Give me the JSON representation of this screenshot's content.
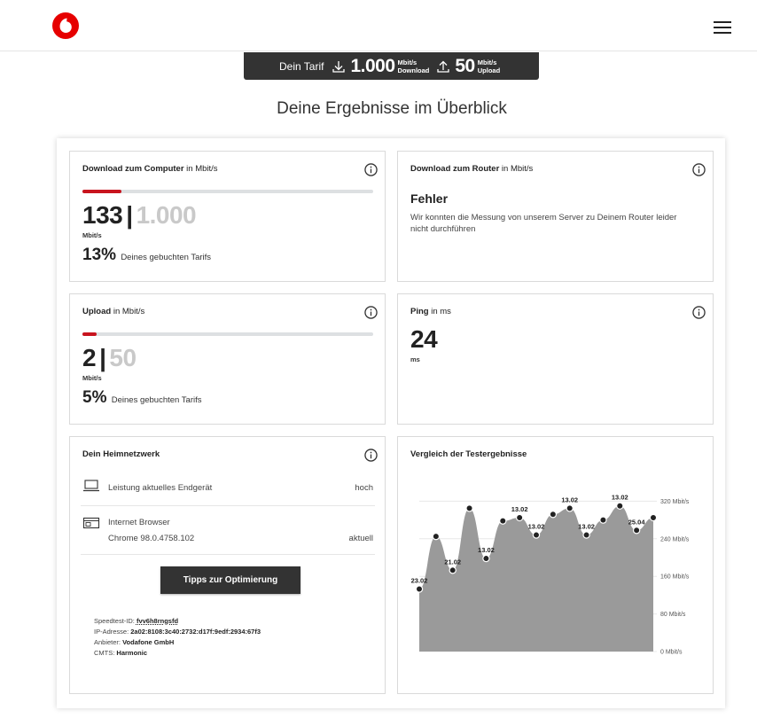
{
  "header": {
    "logo": "vodafone-logo",
    "menu_icon": "hamburger-menu-icon"
  },
  "tarif": {
    "label": "Dein Tarif",
    "download_value": "1.000",
    "download_unit_top": "Mbit/s",
    "download_unit_bottom": "Download",
    "upload_value": "50",
    "upload_unit_top": "Mbit/s",
    "upload_unit_bottom": "Upload"
  },
  "headline": "Deine Ergebnisse im Überblick",
  "download_computer": {
    "title_bold": "Download zum Computer",
    "title_rest": " in Mbit/s",
    "value": "133",
    "separator": "|",
    "max": "1.000",
    "unit": "Mbit/s",
    "percent": "13%",
    "percent_text": "Deines gebuchten Tarifs",
    "fill": 0.133
  },
  "download_router": {
    "title_bold": "Download zum Router",
    "title_rest": " in Mbit/s",
    "error_title": "Fehler",
    "error_text": "Wir konnten die Messung von unserem Server zu Deinem Router leider nicht durchführen"
  },
  "upload": {
    "title_bold": "Upload",
    "title_rest": " in Mbit/s",
    "value": "2",
    "separator": "|",
    "max": "50",
    "unit": "Mbit/s",
    "percent": "5%",
    "percent_text": "Deines gebuchten Tarifs",
    "fill": 0.05
  },
  "ping": {
    "title_bold": "Ping",
    "title_rest": " in ms",
    "value": "24",
    "unit": "ms"
  },
  "heimnetzwerk": {
    "title": "Dein Heimnetzwerk",
    "device_label": "Leistung aktuelles Endgerät",
    "device_value": "hoch",
    "browser_label": "Internet Browser",
    "browser_version": "Chrome 98.0.4758.102",
    "browser_value": "aktuell",
    "tips_button": "Tipps zur Optimierung",
    "speedtest_id_label": "Speedtest-ID: ",
    "speedtest_id": "fvv6h8rngsfd",
    "ip_label": "IP-Adresse: ",
    "ip": "2a02:8108:3c40:2732:d17f:9edf:2934:67f3",
    "provider_label": "Anbieter: ",
    "provider": "Vodafone GmbH",
    "cmts_label": "CMTS: ",
    "cmts": "Harmonic"
  },
  "comparison": {
    "title": "Vergleich der Testergebnisse"
  },
  "colors": {
    "accent": "#c8141e",
    "dark": "#333333",
    "chart_fill": "#9a9a9a"
  },
  "chart_data": {
    "type": "area",
    "title": "Vergleich der Testergebnisse",
    "ylim": [
      0,
      400
    ],
    "y_ticks": [
      "0 Mbit/s",
      "80 Mbit/s",
      "160 Mbit/s",
      "240 Mbit/s",
      "320 Mbit/s"
    ],
    "y_tick_values": [
      0,
      80,
      160,
      240,
      320
    ],
    "grid": true,
    "values": [
      133,
      245,
      173,
      305,
      198,
      278,
      285,
      248,
      292,
      305,
      248,
      280,
      310,
      258,
      285
    ],
    "point_labels": [
      "23.02",
      "",
      "21.02",
      "",
      "13.02",
      "",
      "13.02",
      "13.02",
      "",
      "13.02",
      "13.02",
      "",
      "13.02",
      "25.04",
      ""
    ]
  }
}
